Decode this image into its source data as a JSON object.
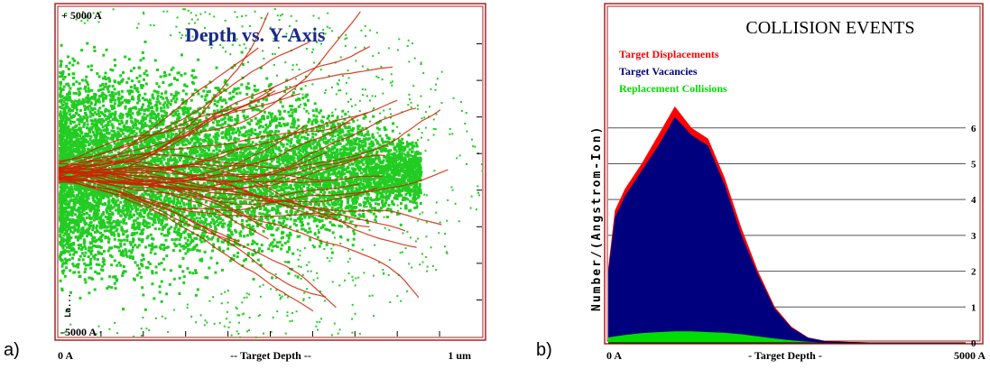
{
  "panel_a": {
    "letter": "a)",
    "title": "Depth vs. Y-Axis",
    "y_top_label": "+ 5000 A",
    "y_bottom_label": "-5000 A",
    "x_left_label": "0 A",
    "x_center_label": "-- Target Depth --",
    "x_right_label": "1 um",
    "side_label": "La..."
  },
  "panel_b": {
    "letter": "b)",
    "title": "COLLISION EVENTS",
    "legend": [
      {
        "label": "Target Displacements",
        "color": "#ff0000"
      },
      {
        "label": "Target Vacancies",
        "color": "#00007f"
      },
      {
        "label": "Replacement Collisions",
        "color": "#00dd00"
      }
    ],
    "ylabel": "Number/(Angstrom-Ion)",
    "x_left_label": "0 A",
    "x_center_label": "- Target Depth -",
    "x_right_label": "5000 A",
    "y_ticks": [
      "0",
      "1",
      "2",
      "3",
      "4",
      "5",
      "6"
    ]
  },
  "chart_data": [
    {
      "type": "scatter",
      "title": "Depth vs. Y-Axis",
      "xlabel": "-- Target Depth --",
      "ylabel": "",
      "xlim": [
        0,
        1000
      ],
      "ylim": [
        -5000,
        5000
      ],
      "x_unit": "nm",
      "series": [
        {
          "name": "",
          "color": "#22cc22"
        },
        {
          "name": "",
          "color": "#cc2200"
        }
      ]
    },
    {
      "type": "area",
      "title": "COLLISION EVENTS",
      "xlabel": "- Target Depth -",
      "ylabel": "Number/(Angstrom-Ion)",
      "xlim": [
        0,
        5000
      ],
      "ylim": [
        0,
        6.8
      ],
      "x": [
        0,
        100,
        250,
        500,
        750,
        1000,
        1250,
        1500,
        1750,
        2000,
        2250,
        2500,
        2750,
        3000,
        3250,
        3500,
        3750,
        4000,
        4250,
        4500,
        5000
      ],
      "series": [
        {
          "name": "Target Displacements",
          "color": "#ff0000",
          "values": [
            2.1,
            3.7,
            4.3,
            5.0,
            5.8,
            6.6,
            6.0,
            5.7,
            4.6,
            3.2,
            2.0,
            1.0,
            0.45,
            0.15,
            0.06,
            0.03,
            0.02,
            0.01,
            0.0,
            0.0,
            0.0
          ]
        },
        {
          "name": "Target Vacancies",
          "color": "#00007f",
          "values": [
            2.0,
            3.5,
            4.1,
            4.8,
            5.5,
            6.3,
            5.8,
            5.5,
            4.4,
            3.0,
            1.9,
            0.95,
            0.42,
            0.14,
            0.05,
            0.03,
            0.02,
            0.01,
            0.0,
            0.0,
            0.0
          ]
        },
        {
          "name": "Replacement Collisions",
          "color": "#00dd00",
          "values": [
            0.15,
            0.18,
            0.22,
            0.27,
            0.3,
            0.32,
            0.32,
            0.3,
            0.28,
            0.24,
            0.18,
            0.12,
            0.07,
            0.03,
            0.01,
            0.0,
            0.0,
            0.0,
            0.0,
            0.0,
            0.0
          ]
        }
      ]
    }
  ]
}
